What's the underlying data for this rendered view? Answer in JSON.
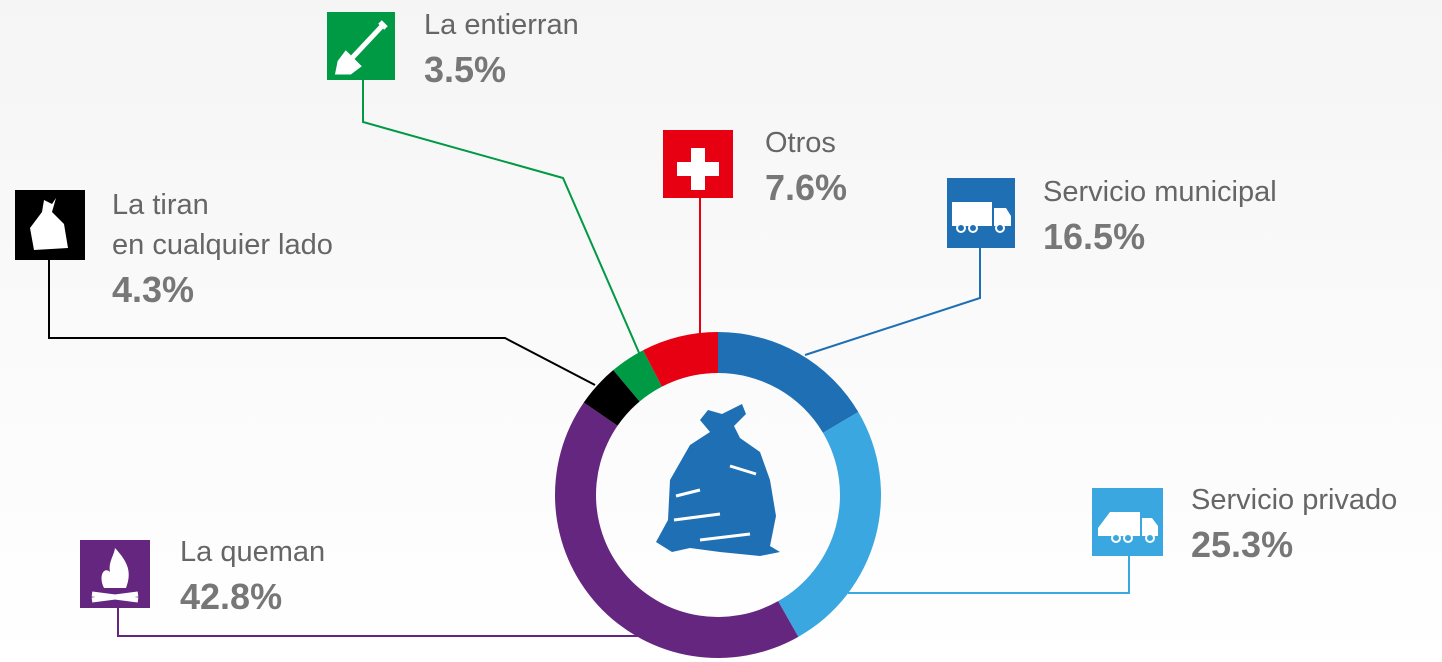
{
  "chart_data": {
    "type": "donut",
    "categories": [
      "Servicio municipal",
      "Servicio privado",
      "La queman",
      "La tiran\nen cualquier lado",
      "La entierran",
      "Otros"
    ],
    "values": [
      16.5,
      25.3,
      42.8,
      4.3,
      3.5,
      7.6
    ],
    "value_labels": [
      "16.5%",
      "25.3%",
      "42.8%",
      "4.3%",
      "3.5%",
      "7.6%"
    ],
    "colors": [
      "#1f6fb5",
      "#3aa7e0",
      "#64267f",
      "#000000",
      "#009944",
      "#e60012"
    ]
  }
}
